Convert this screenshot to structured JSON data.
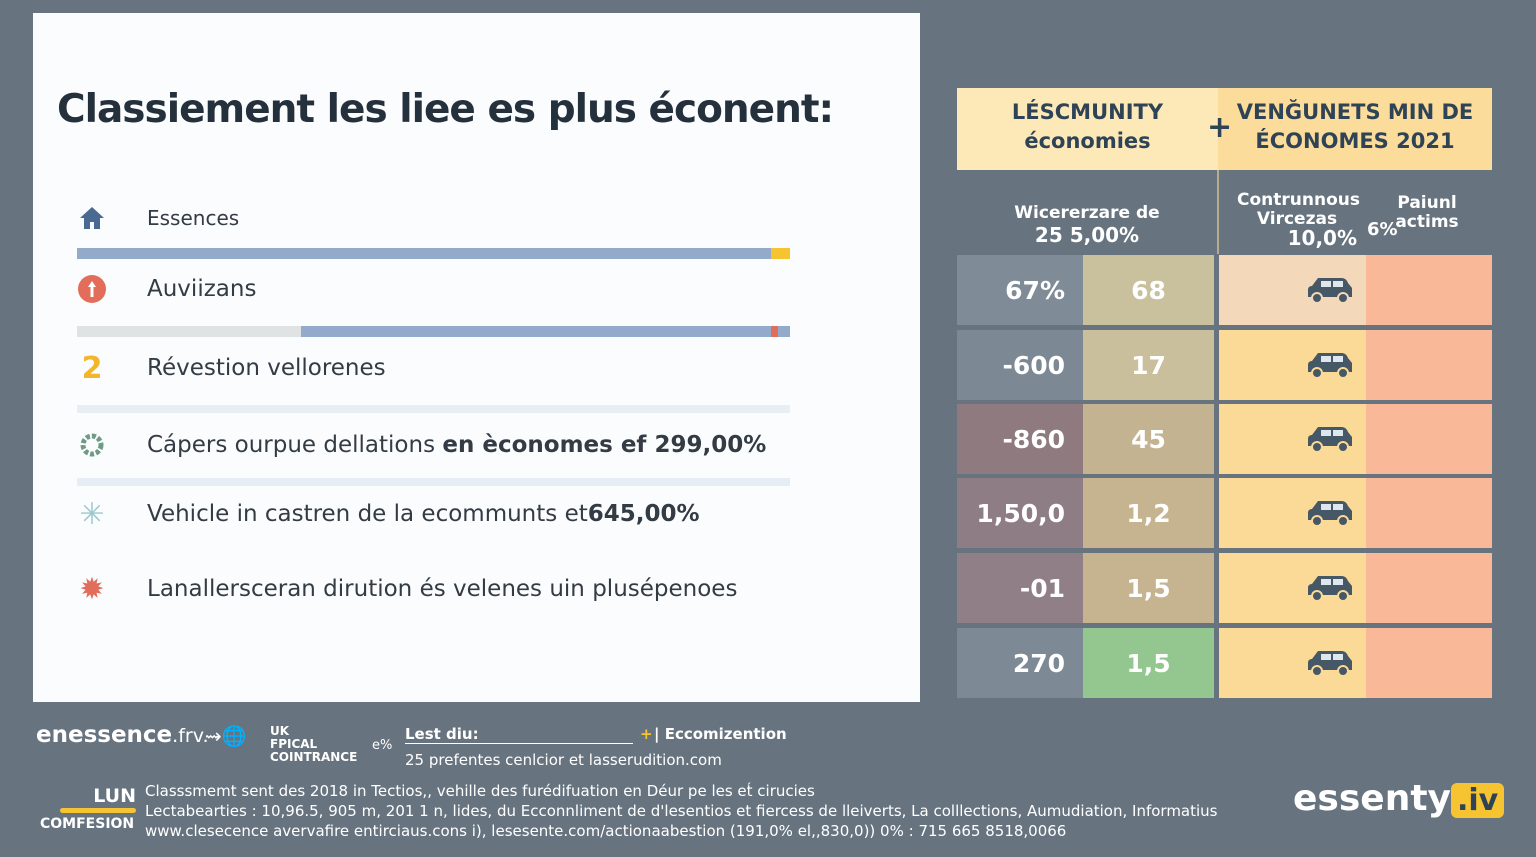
{
  "title": "Classiement les liee es plus éconent:",
  "items": [
    {
      "icon": "home-icon",
      "label": "Essences"
    },
    {
      "icon": "alert-circle-icon",
      "label": "Auviizans"
    },
    {
      "icon": "number-2-icon",
      "glyph": "2",
      "label": "Révestion vellorenes"
    },
    {
      "icon": "gear-icon",
      "label": "Cápers ourpue dellations ",
      "bold": "en èconomes ef 299,00%"
    },
    {
      "icon": "snowflake-icon",
      "label": "Vehicle in castren de la ecommunts et ",
      "bold": "645,00%"
    },
    {
      "icon": "splat-icon",
      "label": "Lanallersceran dirution és velenes uin plusépenoes"
    }
  ],
  "table": {
    "header_left": [
      "LÉSCMUNITY",
      "économies"
    ],
    "header_plus": "+",
    "header_right": [
      "VENĞUNETS MIN DE",
      "ÉCONOMES 2021"
    ],
    "sub_left": [
      "Wicererzare de",
      "25 5,00%"
    ],
    "sub_mid": [
      "Contrunnous",
      "Vircezas",
      "10,0%"
    ],
    "sub_right": [
      "Paiunl",
      "actims",
      "6%"
    ],
    "rows": [
      {
        "a": "67%",
        "b": "68",
        "ca": "#7f8c98",
        "cb": "#c9c09d",
        "cc": "#f3d9b9"
      },
      {
        "a": "-600",
        "b": "17",
        "ca": "#7c8894",
        "cb": "#c9bf9c",
        "cc": "#fbd997"
      },
      {
        "a": "-860",
        "b": "45",
        "ca": "#8f7a80",
        "cb": "#c4b390",
        "cc": "#fbd997"
      },
      {
        "a": "1,50,0",
        "b": "1,2",
        "ca": "#8e7d84",
        "cb": "#c6b491",
        "cc": "#fbd997"
      },
      {
        "a": "-01",
        "b": "1,5",
        "ca": "#907f86",
        "cb": "#c6b491",
        "cc": "#fbd997"
      },
      {
        "a": "270",
        "b": "1,5",
        "ca": "#7d8a96",
        "cb": "#93c78f",
        "cc": "#fbd997"
      }
    ]
  },
  "footer": {
    "brand": "enessence",
    "brand_suffix": ".frv.",
    "badge": [
      "UK",
      "FPICAL",
      "COINTRANCE"
    ],
    "badge_pct": "e%",
    "lest": "Lest diu:",
    "eco": "| Eccomizention",
    "pref": "25 prefentes cenlcior et lasserudition.com",
    "logo": [
      "LUN",
      "COMFESION"
    ],
    "lines": [
      "Classsmemt sent des 2018 in Tectios,, vehille des furédifuation en Déur pe les et́ cirucies",
      "Lectabearties : 10,96.5, 905 m, 201 1 n, lides, du Ecconnliment de d'lesentios et fiercess de lleiverts, La colllections, Aumudiation, Informatius",
      "www.clesecence avervafire entirciaus.cons i), lesesente.com/actionaabestion (191,0% el,,830,0)) 0% : 715 665 8518,0066"
    ],
    "logo_right": "essenty",
    "logo_right_tag": ".iv"
  }
}
